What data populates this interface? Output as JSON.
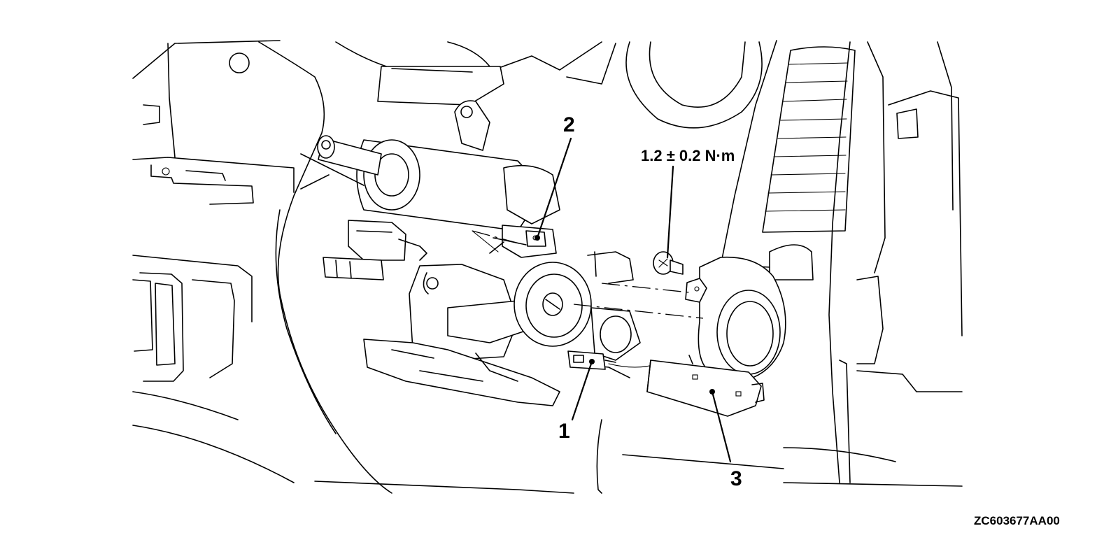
{
  "diagram": {
    "callouts": [
      {
        "id": "1",
        "label": "1"
      },
      {
        "id": "2",
        "label": "2"
      },
      {
        "id": "3",
        "label": "3"
      }
    ],
    "torque_spec": "1.2 ± 0.2 N·m",
    "figure_code": "ZC603677AA00"
  }
}
